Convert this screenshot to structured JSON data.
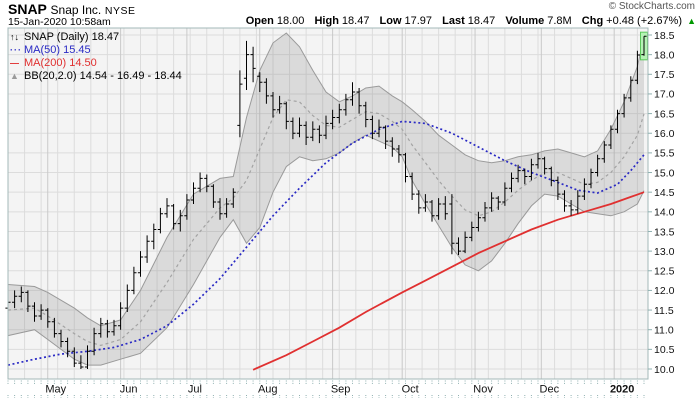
{
  "header": {
    "symbol": "SNAP",
    "company": "Snap Inc.",
    "exchange": "NYSE",
    "timestamp": "15-Jan-2020 10:58am",
    "copyright": "© StockCharts.com",
    "quote": {
      "open_label": "Open",
      "open": "18.00",
      "high_label": "High",
      "high": "18.47",
      "low_label": "Low",
      "low": "17.97",
      "last_label": "Last",
      "last": "18.47",
      "volume_label": "Volume",
      "volume": "7.8M",
      "chg_label": "Chg",
      "chg": "+0.48 (+2.67%)",
      "direction_icon": "▲"
    }
  },
  "legend": {
    "series_icon": "↑↓",
    "series": "SNAP (Daily) 18.47",
    "ma50_icon": "···",
    "ma50": "MA(50) 15.45",
    "ma200_icon": "—",
    "ma200": "MA(200) 14.50",
    "bb_icon": "▲",
    "bb": "BB(20,2.0) 14.54 - 16.49 - 18.44"
  },
  "colors": {
    "ma50": "#2a2ac4",
    "ma200": "#e03030",
    "band_fill": "rgba(128,128,128,0.22)",
    "band_edge": "#9a9a9a",
    "bb_mid": "#a3a3a3",
    "bar": "#000000",
    "up_green": "#009900",
    "highlight_fill": "#b5f2b5",
    "highlight_edge": "#5bc85b",
    "plot_bg": "#f4f4f4",
    "grid_major": "#c9c9c9",
    "grid_minor": "#dcdcdc",
    "frame": "#a3b8b8",
    "tick_mark": "#8fb0b0",
    "axis_text": "#111111"
  },
  "chart_data": {
    "type": "ohlc",
    "title": "SNAP (Daily)",
    "symbol": "SNAP",
    "period": "Daily",
    "last_close": 18.47,
    "y_axis": {
      "min": 10.0,
      "max": 18.5,
      "step": 0.5
    },
    "x_axis": {
      "total_days": 192,
      "week_step": 5,
      "months": [
        {
          "d": 12,
          "label": "May"
        },
        {
          "d": 34,
          "label": "Jun"
        },
        {
          "d": 54,
          "label": "Jul"
        },
        {
          "d": 76,
          "label": "Aug"
        },
        {
          "d": 98,
          "label": "Sep"
        },
        {
          "d": 119,
          "label": "Oct"
        },
        {
          "d": 141,
          "label": "Nov"
        },
        {
          "d": 161,
          "label": "Dec"
        },
        {
          "d": 183,
          "label": "2020",
          "bold": true
        }
      ]
    },
    "bars_format": [
      "day",
      "open",
      "high",
      "low",
      "close"
    ],
    "bars": [
      [
        0,
        11.55,
        11.85,
        11.4,
        11.7
      ],
      [
        2,
        11.7,
        12.0,
        11.55,
        11.85
      ],
      [
        4,
        11.85,
        12.1,
        11.7,
        11.95
      ],
      [
        6,
        11.95,
        12.0,
        11.45,
        11.6
      ],
      [
        8,
        11.6,
        11.7,
        11.2,
        11.35
      ],
      [
        10,
        11.35,
        11.65,
        11.25,
        11.5
      ],
      [
        12,
        11.5,
        11.55,
        11.05,
        11.2
      ],
      [
        14,
        11.2,
        11.3,
        10.8,
        10.9
      ],
      [
        16,
        10.9,
        11.0,
        10.55,
        10.7
      ],
      [
        18,
        10.7,
        10.8,
        10.3,
        10.45
      ],
      [
        20,
        10.45,
        10.55,
        10.05,
        10.15
      ],
      [
        22,
        10.15,
        10.35,
        10.0,
        10.05
      ],
      [
        24,
        10.05,
        10.6,
        10.0,
        10.45
      ],
      [
        26,
        10.45,
        11.05,
        10.35,
        10.9
      ],
      [
        28,
        10.9,
        11.3,
        10.8,
        11.15
      ],
      [
        30,
        11.15,
        11.25,
        10.8,
        10.95
      ],
      [
        32,
        10.95,
        11.25,
        10.85,
        11.1
      ],
      [
        34,
        11.1,
        11.7,
        11.0,
        11.55
      ],
      [
        36,
        11.55,
        12.15,
        11.45,
        12.0
      ],
      [
        38,
        12.0,
        12.6,
        11.9,
        12.45
      ],
      [
        40,
        12.45,
        13.0,
        12.35,
        12.85
      ],
      [
        42,
        12.85,
        13.4,
        12.7,
        13.25
      ],
      [
        44,
        13.25,
        13.7,
        13.05,
        13.55
      ],
      [
        46,
        13.55,
        14.1,
        13.45,
        13.95
      ],
      [
        48,
        13.95,
        14.35,
        13.85,
        14.15
      ],
      [
        50,
        14.15,
        14.2,
        13.55,
        13.7
      ],
      [
        52,
        13.7,
        14.05,
        13.5,
        13.9
      ],
      [
        54,
        13.9,
        14.45,
        13.8,
        14.3
      ],
      [
        56,
        14.3,
        14.75,
        14.2,
        14.6
      ],
      [
        58,
        14.6,
        15.0,
        14.5,
        14.85
      ],
      [
        60,
        14.85,
        14.95,
        14.5,
        14.65
      ],
      [
        62,
        14.65,
        14.7,
        14.1,
        14.25
      ],
      [
        64,
        14.25,
        14.35,
        13.8,
        13.95
      ],
      [
        66,
        13.95,
        14.35,
        13.85,
        14.2
      ],
      [
        68,
        14.2,
        14.6,
        14.1,
        14.5
      ],
      [
        70,
        16.2,
        17.6,
        15.9,
        17.25
      ],
      [
        72,
        17.4,
        18.35,
        17.1,
        18.0
      ],
      [
        74,
        18.0,
        18.2,
        17.3,
        17.65
      ],
      [
        76,
        17.45,
        17.55,
        17.05,
        17.3
      ],
      [
        78,
        17.3,
        17.4,
        16.75,
        16.95
      ],
      [
        80,
        16.95,
        17.05,
        16.4,
        16.6
      ],
      [
        82,
        16.6,
        16.95,
        16.5,
        16.75
      ],
      [
        84,
        16.75,
        16.8,
        16.1,
        16.3
      ],
      [
        86,
        16.3,
        16.4,
        15.85,
        16.0
      ],
      [
        88,
        16.0,
        16.4,
        15.9,
        16.2
      ],
      [
        90,
        16.2,
        16.3,
        15.7,
        15.9
      ],
      [
        92,
        15.9,
        16.3,
        15.8,
        16.1
      ],
      [
        94,
        16.1,
        16.2,
        15.75,
        15.95
      ],
      [
        96,
        15.95,
        16.45,
        15.85,
        16.25
      ],
      [
        98,
        16.25,
        16.6,
        16.1,
        16.4
      ],
      [
        100,
        16.4,
        16.75,
        16.25,
        16.6
      ],
      [
        102,
        16.6,
        17.0,
        16.45,
        16.85
      ],
      [
        104,
        16.85,
        17.3,
        16.7,
        17.05
      ],
      [
        106,
        17.05,
        17.15,
        16.5,
        16.7
      ],
      [
        108,
        16.7,
        16.8,
        16.15,
        16.35
      ],
      [
        110,
        16.35,
        16.45,
        15.85,
        16.0
      ],
      [
        112,
        16.0,
        16.35,
        15.9,
        16.15
      ],
      [
        114,
        16.15,
        16.2,
        15.6,
        15.8
      ],
      [
        116,
        15.8,
        15.9,
        15.4,
        15.6
      ],
      [
        118,
        15.6,
        15.7,
        15.25,
        15.45
      ],
      [
        120,
        15.45,
        15.5,
        14.75,
        14.9
      ],
      [
        122,
        14.9,
        15.0,
        14.3,
        14.45
      ],
      [
        124,
        14.45,
        14.55,
        13.95,
        14.1
      ],
      [
        126,
        14.1,
        14.45,
        14.0,
        14.25
      ],
      [
        128,
        14.25,
        14.3,
        13.75,
        13.9
      ],
      [
        130,
        13.9,
        14.35,
        13.8,
        14.2
      ],
      [
        132,
        14.2,
        14.4,
        13.8,
        13.95
      ],
      [
        134,
        14.2,
        14.45,
        12.92,
        13.2
      ],
      [
        136,
        13.2,
        13.35,
        12.9,
        13.0
      ],
      [
        138,
        13.0,
        13.5,
        12.95,
        13.35
      ],
      [
        140,
        13.35,
        13.75,
        13.25,
        13.6
      ],
      [
        142,
        13.6,
        14.0,
        13.5,
        13.85
      ],
      [
        144,
        13.85,
        14.25,
        13.75,
        14.1
      ],
      [
        146,
        14.1,
        14.5,
        14.0,
        14.35
      ],
      [
        148,
        14.35,
        14.4,
        14.05,
        14.25
      ],
      [
        150,
        14.25,
        14.75,
        14.15,
        14.6
      ],
      [
        152,
        14.6,
        15.0,
        14.5,
        14.85
      ],
      [
        154,
        14.85,
        15.2,
        14.75,
        15.05
      ],
      [
        156,
        15.05,
        15.1,
        14.7,
        14.9
      ],
      [
        158,
        14.9,
        15.35,
        14.8,
        15.2
      ],
      [
        160,
        15.2,
        15.5,
        15.1,
        15.35
      ],
      [
        162,
        15.35,
        15.4,
        14.95,
        15.1
      ],
      [
        164,
        15.1,
        15.15,
        14.65,
        14.8
      ],
      [
        166,
        14.8,
        14.9,
        14.3,
        14.45
      ],
      [
        168,
        14.45,
        14.55,
        14.0,
        14.15
      ],
      [
        170,
        14.15,
        14.3,
        13.9,
        14.05
      ],
      [
        172,
        14.05,
        14.55,
        13.95,
        14.4
      ],
      [
        174,
        14.4,
        14.85,
        14.3,
        14.7
      ],
      [
        176,
        14.7,
        15.1,
        14.6,
        15.0
      ],
      [
        178,
        15.0,
        15.45,
        14.9,
        15.35
      ],
      [
        180,
        15.35,
        15.8,
        15.25,
        15.7
      ],
      [
        182,
        15.7,
        16.2,
        15.6,
        16.1
      ],
      [
        184,
        16.1,
        16.6,
        16.0,
        16.5
      ],
      [
        186,
        16.5,
        17.0,
        16.4,
        16.9
      ],
      [
        188,
        16.9,
        17.45,
        16.8,
        17.35
      ],
      [
        190,
        17.35,
        18.1,
        17.25,
        17.99
      ],
      [
        192,
        18.0,
        18.47,
        17.97,
        18.47
      ]
    ],
    "highlight_last_bar": true,
    "overlays": {
      "ma50": [
        [
          0,
          10.1
        ],
        [
          8,
          10.25
        ],
        [
          16,
          10.38
        ],
        [
          24,
          10.45
        ],
        [
          32,
          10.55
        ],
        [
          40,
          10.75
        ],
        [
          48,
          11.1
        ],
        [
          56,
          11.65
        ],
        [
          64,
          12.3
        ],
        [
          72,
          13.1
        ],
        [
          80,
          13.9
        ],
        [
          88,
          14.6
        ],
        [
          96,
          15.25
        ],
        [
          104,
          15.75
        ],
        [
          112,
          16.1
        ],
        [
          119,
          16.3
        ],
        [
          126,
          16.25
        ],
        [
          134,
          16.0
        ],
        [
          142,
          15.65
        ],
        [
          150,
          15.3
        ],
        [
          158,
          15.0
        ],
        [
          166,
          14.75
        ],
        [
          172,
          14.55
        ],
        [
          178,
          14.48
        ],
        [
          184,
          14.7
        ],
        [
          188,
          15.05
        ],
        [
          192,
          15.45
        ]
      ],
      "ma200": [
        [
          74,
          9.98
        ],
        [
          84,
          10.35
        ],
        [
          92,
          10.7
        ],
        [
          100,
          11.05
        ],
        [
          108,
          11.45
        ],
        [
          119,
          11.95
        ],
        [
          126,
          12.25
        ],
        [
          134,
          12.6
        ],
        [
          142,
          12.95
        ],
        [
          150,
          13.25
        ],
        [
          158,
          13.55
        ],
        [
          166,
          13.8
        ],
        [
          174,
          14.0
        ],
        [
          182,
          14.2
        ],
        [
          188,
          14.38
        ],
        [
          192,
          14.5
        ]
      ],
      "bb_upper": [
        [
          0,
          12.15
        ],
        [
          8,
          12.1
        ],
        [
          12,
          11.95
        ],
        [
          20,
          11.55
        ],
        [
          24,
          11.3
        ],
        [
          28,
          11.1
        ],
        [
          34,
          11.25
        ],
        [
          40,
          12.0
        ],
        [
          48,
          13.35
        ],
        [
          56,
          14.45
        ],
        [
          64,
          14.85
        ],
        [
          68,
          14.9
        ],
        [
          72,
          16.4
        ],
        [
          76,
          17.6
        ],
        [
          80,
          18.3
        ],
        [
          84,
          18.55
        ],
        [
          88,
          18.2
        ],
        [
          92,
          17.6
        ],
        [
          96,
          17.05
        ],
        [
          100,
          16.8
        ],
        [
          104,
          16.95
        ],
        [
          108,
          17.15
        ],
        [
          112,
          17.2
        ],
        [
          116,
          16.95
        ],
        [
          119,
          16.8
        ],
        [
          122,
          16.6
        ],
        [
          126,
          16.3
        ],
        [
          130,
          15.95
        ],
        [
          134,
          15.7
        ],
        [
          138,
          15.45
        ],
        [
          142,
          15.3
        ],
        [
          146,
          15.25
        ],
        [
          150,
          15.3
        ],
        [
          154,
          15.4
        ],
        [
          158,
          15.45
        ],
        [
          162,
          15.55
        ],
        [
          166,
          15.6
        ],
        [
          170,
          15.5
        ],
        [
          174,
          15.4
        ],
        [
          178,
          15.55
        ],
        [
          182,
          16.1
        ],
        [
          186,
          16.8
        ],
        [
          190,
          17.7
        ],
        [
          192,
          18.44
        ]
      ],
      "bb_mid": [
        [
          0,
          11.5
        ],
        [
          8,
          11.55
        ],
        [
          12,
          11.35
        ],
        [
          20,
          10.9
        ],
        [
          24,
          10.7
        ],
        [
          28,
          10.6
        ],
        [
          34,
          10.75
        ],
        [
          40,
          11.2
        ],
        [
          48,
          12.2
        ],
        [
          56,
          13.3
        ],
        [
          64,
          14.1
        ],
        [
          68,
          14.35
        ],
        [
          72,
          14.8
        ],
        [
          76,
          15.6
        ],
        [
          80,
          16.4
        ],
        [
          84,
          16.85
        ],
        [
          88,
          16.8
        ],
        [
          92,
          16.45
        ],
        [
          96,
          16.2
        ],
        [
          100,
          16.15
        ],
        [
          104,
          16.35
        ],
        [
          108,
          16.55
        ],
        [
          112,
          16.5
        ],
        [
          116,
          16.3
        ],
        [
          119,
          16.1
        ],
        [
          122,
          15.7
        ],
        [
          126,
          15.25
        ],
        [
          130,
          14.8
        ],
        [
          134,
          14.4
        ],
        [
          138,
          14.05
        ],
        [
          142,
          13.9
        ],
        [
          146,
          14.0
        ],
        [
          150,
          14.25
        ],
        [
          154,
          14.55
        ],
        [
          158,
          14.8
        ],
        [
          162,
          15.0
        ],
        [
          166,
          15.0
        ],
        [
          170,
          14.85
        ],
        [
          174,
          14.7
        ],
        [
          178,
          14.75
        ],
        [
          182,
          15.0
        ],
        [
          186,
          15.4
        ],
        [
          190,
          15.95
        ],
        [
          192,
          16.49
        ]
      ],
      "bb_lower": [
        [
          0,
          10.85
        ],
        [
          8,
          11.0
        ],
        [
          12,
          10.75
        ],
        [
          20,
          10.25
        ],
        [
          24,
          10.1
        ],
        [
          28,
          10.1
        ],
        [
          34,
          10.25
        ],
        [
          40,
          10.4
        ],
        [
          48,
          11.05
        ],
        [
          56,
          12.15
        ],
        [
          64,
          13.35
        ],
        [
          68,
          13.8
        ],
        [
          72,
          13.2
        ],
        [
          76,
          13.6
        ],
        [
          80,
          14.5
        ],
        [
          84,
          15.15
        ],
        [
          88,
          15.4
        ],
        [
          92,
          15.3
        ],
        [
          96,
          15.35
        ],
        [
          100,
          15.5
        ],
        [
          104,
          15.75
        ],
        [
          108,
          15.95
        ],
        [
          112,
          15.8
        ],
        [
          116,
          15.65
        ],
        [
          119,
          15.4
        ],
        [
          122,
          14.8
        ],
        [
          126,
          14.2
        ],
        [
          130,
          13.65
        ],
        [
          134,
          13.1
        ],
        [
          138,
          12.65
        ],
        [
          142,
          12.5
        ],
        [
          146,
          12.75
        ],
        [
          150,
          13.2
        ],
        [
          154,
          13.7
        ],
        [
          158,
          14.15
        ],
        [
          162,
          14.45
        ],
        [
          166,
          14.4
        ],
        [
          170,
          14.2
        ],
        [
          174,
          14.0
        ],
        [
          178,
          13.95
        ],
        [
          182,
          13.9
        ],
        [
          186,
          14.0
        ],
        [
          190,
          14.2
        ],
        [
          192,
          14.54
        ]
      ]
    },
    "legend_values": {
      "ma50": 15.45,
      "ma200": 14.5,
      "bb_lower": 14.54,
      "bb_mid": 16.49,
      "bb_upper": 18.44
    }
  }
}
